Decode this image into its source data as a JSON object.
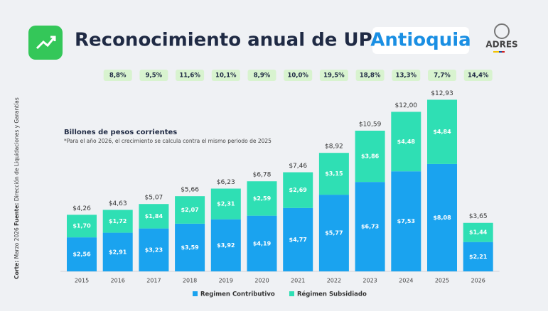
{
  "chart_data": {
    "type": "stacked_bar",
    "title": "Reconocimiento anual de UPC en",
    "title_highlight": "Antioquia",
    "logo": "ADRES",
    "subtitle": "Billones de pesos corrientes",
    "note": "*Para el año 2026, el crecimiento se calcula contra el mismo periodo de 2025",
    "source_cut_label": "Corte:",
    "source_cut": "Marzo 2026",
    "source_label": "Fuente:",
    "source": "Dirección de Liquidaciones y Garantías",
    "categories": [
      "2015",
      "2016",
      "2017",
      "2018",
      "2019",
      "2020",
      "2021",
      "2022",
      "2023",
      "2024",
      "2025",
      "2026"
    ],
    "series": [
      {
        "name": "Regimen Contributivo",
        "color": "#1aa3ef",
        "values": [
          2.56,
          2.91,
          3.23,
          3.59,
          3.92,
          4.19,
          4.77,
          5.77,
          6.73,
          7.53,
          8.08,
          2.21
        ],
        "value_labels": [
          "$2,56",
          "$2,91",
          "$3,23",
          "$3,59",
          "$3,92",
          "$4,19",
          "$4,77",
          "$5,77",
          "$6,73",
          "$7,53",
          "$8,08",
          "$2,21"
        ]
      },
      {
        "name": "Régimen Subsidiado",
        "color": "#2fdfb4",
        "values": [
          1.7,
          1.72,
          1.84,
          2.07,
          2.31,
          2.59,
          2.69,
          3.15,
          3.86,
          4.48,
          4.84,
          1.44
        ],
        "value_labels": [
          "$1,70",
          "$1,72",
          "$1,84",
          "$2,07",
          "$2,31",
          "$2,59",
          "$2,69",
          "$3,15",
          "$3,86",
          "$4,48",
          "$4,84",
          "$1,44"
        ]
      }
    ],
    "totals": {
      "values": [
        4.26,
        4.63,
        5.07,
        5.66,
        6.23,
        6.78,
        7.46,
        8.92,
        10.59,
        12.0,
        12.93,
        3.65
      ],
      "value_labels": [
        "$4,26",
        "$4,63",
        "$5,07",
        "$5,66",
        "$6,23",
        "$6,78",
        "$7,46",
        "$8,92",
        "$10,59",
        "$12,00",
        "$12,93",
        "$3,65"
      ]
    },
    "growth": {
      "values": [
        null,
        8.8,
        9.5,
        11.6,
        10.1,
        8.9,
        10.0,
        19.5,
        18.8,
        13.3,
        7.7,
        14.4
      ],
      "value_labels": [
        null,
        "8,8%",
        "9,5%",
        "11,6%",
        "10,1%",
        "8,9%",
        "10,0%",
        "19,5%",
        "18,8%",
        "13,3%",
        "7,7%",
        "14,4%"
      ]
    },
    "legend": "bottom"
  }
}
